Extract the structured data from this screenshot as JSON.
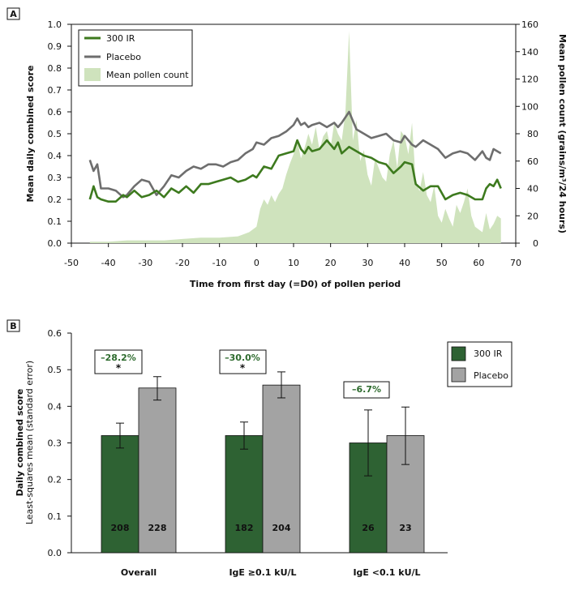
{
  "colors": {
    "ir300_line": "#3d7a1e",
    "placebo_line": "#6e6e6e",
    "pollen_fill": "#cfe3bd",
    "ir300_bar": "#2e6233",
    "placebo_bar": "#a3a3a3",
    "pct_text": "#2e6b2e"
  },
  "chart_data": [
    {
      "panel": "A",
      "type": "line",
      "xlabel": "Time from first day (=D0) of pollen period",
      "ylabel": "Mean daily combined score",
      "y2label": "Mean pollen count (grains/m³/24 hours)",
      "xlim": [
        -50,
        70
      ],
      "ylim": [
        0,
        1.0
      ],
      "y2lim": [
        0,
        160
      ],
      "x_ticks": [
        -50,
        -40,
        -30,
        -20,
        -10,
        0,
        10,
        20,
        30,
        40,
        50,
        60,
        70
      ],
      "y_ticks": [
        "0.0",
        "0.1",
        "0.2",
        "0.3",
        "0.4",
        "0.5",
        "0.6",
        "0.7",
        "0.8",
        "0.9",
        "1.0"
      ],
      "y2_ticks": [
        "0",
        "20",
        "40",
        "60",
        "80",
        "100",
        "120",
        "140",
        "160"
      ],
      "legend": [
        "300 IR",
        "Placebo",
        "Mean pollen count"
      ],
      "legend_position": "top-left",
      "series": [
        {
          "name": "300 IR",
          "x": [
            -45,
            -44,
            -43,
            -42,
            -40,
            -38,
            -36,
            -35,
            -33,
            -31,
            -29,
            -27,
            -25,
            -23,
            -21,
            -19,
            -17,
            -15,
            -13,
            -11,
            -9,
            -7,
            -5,
            -3,
            -1,
            0,
            2,
            4,
            6,
            8,
            10,
            11,
            12,
            13,
            14,
            15,
            17,
            19,
            21,
            22,
            23,
            25,
            27,
            29,
            31,
            33,
            35,
            37,
            39,
            40,
            42,
            43,
            45,
            47,
            49,
            51,
            53,
            55,
            57,
            59,
            61,
            62,
            63,
            64,
            65,
            66
          ],
          "values": [
            0.2,
            0.26,
            0.21,
            0.2,
            0.19,
            0.19,
            0.22,
            0.21,
            0.24,
            0.21,
            0.22,
            0.24,
            0.21,
            0.25,
            0.23,
            0.26,
            0.23,
            0.27,
            0.27,
            0.28,
            0.29,
            0.3,
            0.28,
            0.29,
            0.31,
            0.3,
            0.35,
            0.34,
            0.4,
            0.41,
            0.42,
            0.47,
            0.43,
            0.41,
            0.44,
            0.42,
            0.43,
            0.47,
            0.43,
            0.46,
            0.41,
            0.44,
            0.42,
            0.4,
            0.39,
            0.37,
            0.36,
            0.32,
            0.35,
            0.37,
            0.36,
            0.27,
            0.24,
            0.26,
            0.26,
            0.2,
            0.22,
            0.23,
            0.22,
            0.2,
            0.2,
            0.25,
            0.27,
            0.26,
            0.29,
            0.25
          ]
        },
        {
          "name": "Placebo",
          "x": [
            -45,
            -44,
            -43,
            -42,
            -40,
            -38,
            -36,
            -35,
            -33,
            -31,
            -29,
            -27,
            -25,
            -23,
            -21,
            -19,
            -17,
            -15,
            -13,
            -11,
            -9,
            -7,
            -5,
            -3,
            -1,
            0,
            2,
            4,
            6,
            8,
            10,
            11,
            12,
            13,
            14,
            15,
            17,
            19,
            21,
            22,
            23,
            25,
            27,
            29,
            31,
            33,
            35,
            37,
            39,
            40,
            42,
            43,
            45,
            47,
            49,
            51,
            53,
            55,
            57,
            59,
            61,
            62,
            63,
            64,
            65,
            66
          ],
          "values": [
            0.38,
            0.33,
            0.36,
            0.25,
            0.25,
            0.24,
            0.21,
            0.22,
            0.26,
            0.29,
            0.28,
            0.22,
            0.26,
            0.31,
            0.3,
            0.33,
            0.35,
            0.34,
            0.36,
            0.36,
            0.35,
            0.37,
            0.38,
            0.41,
            0.43,
            0.46,
            0.45,
            0.48,
            0.49,
            0.51,
            0.54,
            0.57,
            0.54,
            0.55,
            0.53,
            0.54,
            0.55,
            0.53,
            0.55,
            0.53,
            0.55,
            0.6,
            0.52,
            0.5,
            0.48,
            0.49,
            0.5,
            0.47,
            0.46,
            0.49,
            0.45,
            0.44,
            0.47,
            0.45,
            0.43,
            0.39,
            0.41,
            0.42,
            0.41,
            0.38,
            0.42,
            0.39,
            0.38,
            0.43,
            0.42,
            0.41
          ]
        },
        {
          "name": "Mean pollen count",
          "type": "area",
          "axis": "right",
          "x": [
            -45,
            -40,
            -35,
            -30,
            -25,
            -20,
            -15,
            -10,
            -5,
            -2,
            0,
            1,
            2,
            3,
            4,
            5,
            6,
            7,
            8,
            9,
            10,
            11,
            12,
            13,
            14,
            15,
            16,
            17,
            18,
            19,
            20,
            21,
            22,
            23,
            24,
            25,
            26,
            27,
            28,
            29,
            30,
            31,
            32,
            33,
            34,
            35,
            36,
            37,
            38,
            39,
            40,
            41,
            42,
            43,
            44,
            45,
            46,
            47,
            48,
            49,
            50,
            51,
            52,
            53,
            54,
            55,
            56,
            57,
            58,
            59,
            60,
            61,
            62,
            63,
            64,
            65,
            66
          ],
          "values": [
            1,
            1,
            2,
            2,
            2,
            3,
            4,
            4,
            5,
            8,
            12,
            25,
            32,
            28,
            35,
            30,
            36,
            40,
            50,
            58,
            65,
            75,
            62,
            70,
            80,
            72,
            85,
            68,
            78,
            82,
            70,
            88,
            80,
            75,
            95,
            155,
            75,
            90,
            60,
            68,
            50,
            42,
            62,
            55,
            48,
            45,
            65,
            75,
            55,
            82,
            78,
            65,
            88,
            45,
            38,
            52,
            35,
            30,
            42,
            20,
            15,
            25,
            18,
            12,
            28,
            22,
            30,
            40,
            20,
            12,
            10,
            8,
            22,
            10,
            14,
            20,
            18
          ]
        }
      ]
    },
    {
      "panel": "B",
      "type": "bar",
      "ylabel": "Daily combined score",
      "ylabel_sub": "Least-squares mean (standard error)",
      "ylim": [
        0,
        0.6
      ],
      "y_ticks": [
        "0.0",
        "0.1",
        "0.2",
        "0.3",
        "0.4",
        "0.5",
        "0.6"
      ],
      "categories": [
        "Overall",
        "IgE ≥0.1 kU/L",
        "IgE <0.1 kU/L"
      ],
      "legend": [
        "300 IR",
        "Placebo"
      ],
      "legend_position": "top-right",
      "series": [
        {
          "name": "300 IR",
          "values": [
            0.32,
            0.32,
            0.3
          ],
          "err_low": [
            0.286,
            0.283,
            0.21
          ],
          "err_high": [
            0.354,
            0.357,
            0.39
          ],
          "n": [
            "208",
            "182",
            "26"
          ]
        },
        {
          "name": "Placebo",
          "values": [
            0.45,
            0.458,
            0.32
          ],
          "err_low": [
            0.417,
            0.423,
            0.241
          ],
          "err_high": [
            0.481,
            0.494,
            0.398
          ],
          "n": [
            "228",
            "204",
            "23"
          ]
        }
      ],
      "annotations": [
        {
          "category": "Overall",
          "pct": "–28.2%",
          "star": "*"
        },
        {
          "category": "IgE ≥0.1 kU/L",
          "pct": "–30.0%",
          "star": "*"
        },
        {
          "category": "IgE <0.1 kU/L",
          "pct": "–6.7%",
          "star": ""
        }
      ]
    }
  ]
}
